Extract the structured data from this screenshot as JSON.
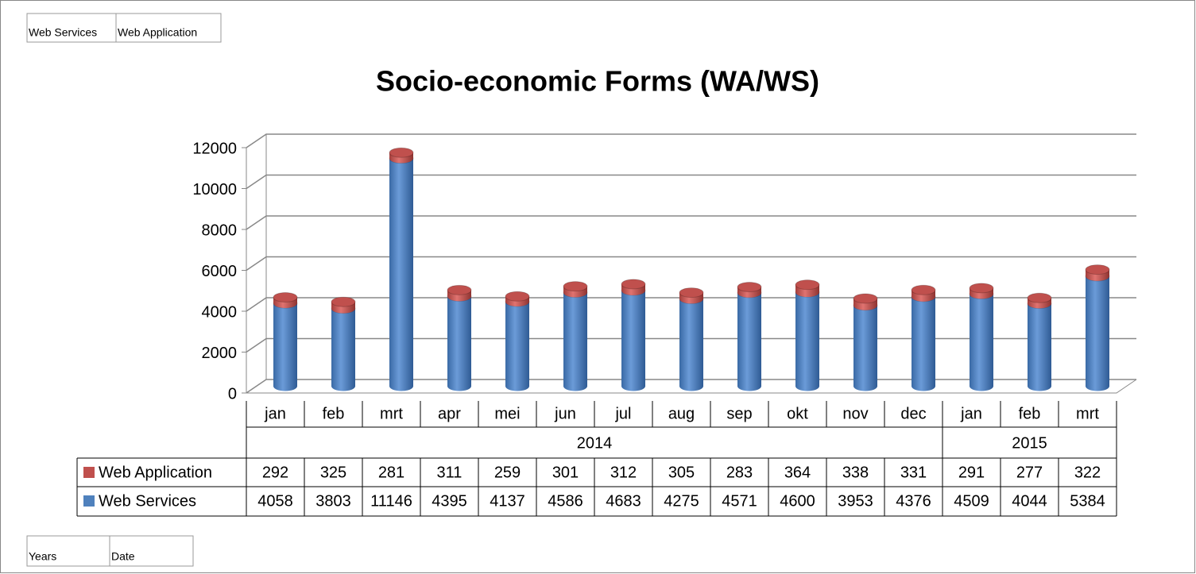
{
  "chart_data": {
    "type": "bar",
    "stacked": true,
    "title": "Socio-economic Forms (WA/WS)",
    "groups": [
      {
        "name": "2014",
        "categories": [
          "jan",
          "feb",
          "mrt",
          "apr",
          "mei",
          "jun",
          "jul",
          "aug",
          "sep",
          "okt",
          "nov",
          "dec"
        ]
      },
      {
        "name": "2015",
        "categories": [
          "jan",
          "feb",
          "mrt"
        ]
      }
    ],
    "series": [
      {
        "name": "Web Services",
        "color": "#4f81bd",
        "values": [
          4058,
          3803,
          11146,
          4395,
          4137,
          4586,
          4683,
          4275,
          4571,
          4600,
          3953,
          4376,
          4509,
          4044,
          5384
        ]
      },
      {
        "name": "Web Application",
        "color": "#c0504d",
        "values": [
          292,
          325,
          281,
          311,
          259,
          301,
          312,
          305,
          283,
          364,
          338,
          331,
          291,
          277,
          322
        ]
      }
    ],
    "ylim": [
      0,
      12000
    ],
    "yticks": [
      0,
      2000,
      4000,
      6000,
      8000,
      10000,
      12000
    ],
    "grid": true,
    "field_buttons": {
      "series": [
        "Web Services",
        "Web Application"
      ],
      "axis": [
        "Years",
        "Date"
      ]
    }
  }
}
